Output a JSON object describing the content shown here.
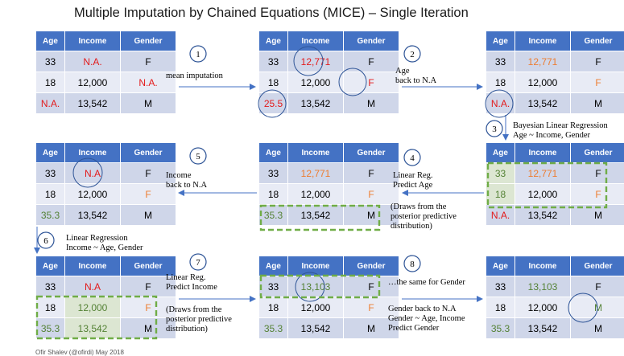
{
  "title": "Multiple Imputation by Chained Equations (MICE) – Single Iteration",
  "headers": [
    "Age",
    "Income",
    "Gender"
  ],
  "tables": {
    "t1": [
      [
        "33",
        "N.A.",
        "F"
      ],
      [
        "18",
        "12,000",
        "N.A."
      ],
      [
        "N.A.",
        "13,542",
        "M"
      ]
    ],
    "t2": [
      [
        "33",
        "12,771",
        "F"
      ],
      [
        "18",
        "12,000",
        "F"
      ],
      [
        "25.5",
        "13,542",
        "M"
      ]
    ],
    "t3": [
      [
        "33",
        "12,771",
        "F"
      ],
      [
        "18",
        "12,000",
        "F"
      ],
      [
        "N.A.",
        "13,542",
        "M"
      ]
    ],
    "t4": [
      [
        "33",
        "12,771",
        "F"
      ],
      [
        "18",
        "12,000",
        "F"
      ],
      [
        "35.3",
        "13,542",
        "M"
      ]
    ],
    "t5": [
      [
        "33",
        "N.A",
        "F"
      ],
      [
        "18",
        "12,000",
        "F"
      ],
      [
        "35.3",
        "13,542",
        "M"
      ]
    ],
    "t6": [
      [
        "33",
        "N.A",
        "F"
      ],
      [
        "18",
        "12,000",
        "F"
      ],
      [
        "35.3",
        "13,542",
        "M"
      ]
    ],
    "t7": [
      [
        "33",
        "13,103",
        "F"
      ],
      [
        "18",
        "12,000",
        "F"
      ],
      [
        "35.3",
        "13,542",
        "M"
      ]
    ],
    "t8": [
      [
        "33",
        "13,103",
        "F"
      ],
      [
        "18",
        "12,000",
        "M"
      ],
      [
        "35.3",
        "13,542",
        "M"
      ]
    ]
  },
  "steps": [
    "1",
    "2",
    "3",
    "4",
    "5",
    "6",
    "7",
    "8"
  ],
  "annotations": {
    "s1": "mean imputation",
    "s2_l1": "Age",
    "s2_l2": "back to N.A",
    "s3_l1": "Bayesian Linear Regression",
    "s3_l2": "Age ~ Income, Gender",
    "s4_l1": "Linear Reg.",
    "s4_l2": "Predict Age",
    "s4_l3": "(Draws from the",
    "s4_l4": "posterior predictive",
    "s4_l5": "distribution)",
    "s5_l1": "Income",
    "s5_l2": "back to N.A",
    "s6_l1": "Linear Regression",
    "s6_l2": "Income ~ Age, Gender",
    "s7_l1": "Linear Reg.",
    "s7_l2": "Predict Income",
    "s7_l3": "(Draws from the",
    "s7_l4": "posterior predictive",
    "s7_l5": "distribution)",
    "s8_l1": "…the same for Gender",
    "s8_l2": "Gender back to N.A",
    "s8_l3": "Gender ~ Age, Income",
    "s8_l4": "Predict Gender"
  },
  "footer": "Ofir Shalev (@ofirdi) May 2018",
  "colors": {
    "header": "#4472c4",
    "missing": "#e31b1b",
    "imputed": "#ed7d31",
    "regression": "#548235",
    "circle": "#2f5597",
    "dashed_box": "#70ad47",
    "arrow": "#4472c4"
  }
}
